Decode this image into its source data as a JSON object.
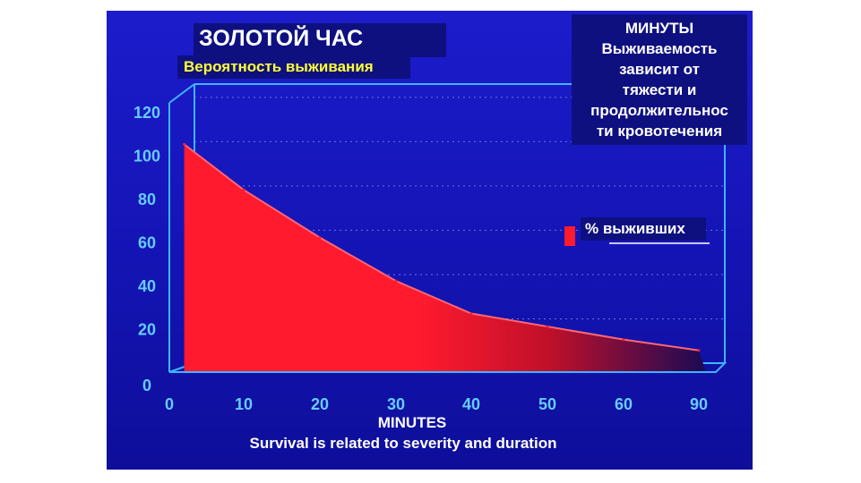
{
  "overlay": {
    "title": "ЗОЛОТОЙ ЧАС",
    "subtitle": "Вероятность выживания",
    "note_lines": [
      "МИНУТЫ",
      "Выживаемость",
      "зависит от",
      "тяжести и",
      "продолжительнос",
      "ти кровотечения"
    ]
  },
  "chart_data": {
    "type": "area",
    "x": [
      2,
      10,
      20,
      30,
      40,
      50,
      60,
      90
    ],
    "y": [
      105,
      84,
      62,
      42,
      27,
      21,
      15,
      10
    ],
    "x_ticks": [
      "0",
      "10",
      "20",
      "30",
      "40",
      "50",
      "60",
      "90"
    ],
    "y_ticks": [
      "0",
      "20",
      "40",
      "60",
      "80",
      "100",
      "120"
    ],
    "ylim": [
      0,
      120
    ],
    "xlabel": "MINUTES",
    "caption": "Survival is related to severity and duration",
    "legend": {
      "label": "% выживших",
      "placement": "right"
    },
    "colors": {
      "area": "#ff1a2e",
      "area_fade": "#1a0a55",
      "frame": "#40b4ff",
      "tick_text": "#66ccff",
      "grid": "#6e6ee6",
      "label_text": "#ffffff"
    },
    "grid": true
  }
}
